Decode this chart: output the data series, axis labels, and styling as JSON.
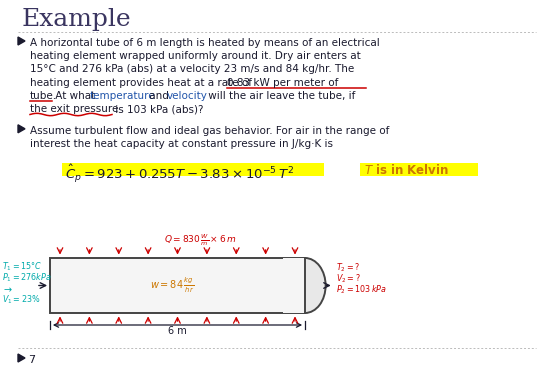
{
  "background_color": "#ffffff",
  "title": "Example",
  "title_color": "#3a3560",
  "title_fontsize": 18,
  "b1_l1": "A horizontal tube of 6 m length is heated by means of an electrical",
  "b1_l2": "heating element wrapped uniformly around it. Dry air enters at",
  "b1_l3": "15°C and 276 kPa (abs) at a velocity 23 m/s and 84 kg/hr. The",
  "b1_l4a": "heating element provides heat at a rate of ",
  "b1_l4b": "0.83 kW per meter of",
  "b1_l5a": "tube.",
  "b1_l5b": " At what ",
  "b1_l5c": "temperature",
  "b1_l5d": " and ",
  "b1_l5e": "velocity",
  "b1_l5f": " will the air leave the tube, if",
  "b1_l6a": "the exit pressure",
  "b1_l6b": " is 103 kPa (abs)?",
  "b2_l1": "Assume turbulent flow and ideal gas behavior. For air in the range of",
  "b2_l2": "interest the heat capacity at constant pressure in J/kg·K is",
  "underline_color": "#cc0000",
  "highlight_color": "#ffff00",
  "blue_color": "#2255aa",
  "red_color": "#cc0000",
  "dark_red": "#cc2200",
  "orange_color": "#cc7700",
  "text_color": "#1a1a2e",
  "gray_color": "#555555",
  "slide_number": "7",
  "dotted_line_color": "#bbbbbb",
  "tube_fill": "#f5f5f5",
  "tube_edge": "#444444"
}
